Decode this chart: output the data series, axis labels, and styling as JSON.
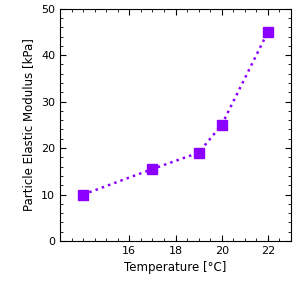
{
  "x": [
    14,
    17,
    19,
    20,
    22
  ],
  "y": [
    10,
    15.5,
    19,
    25,
    45
  ],
  "color": "#8B00FF",
  "marker": "s",
  "marker_size": 7,
  "linestyle": "dotted",
  "linewidth": 1.8,
  "xlabel": "Temperature [°C]",
  "ylabel": "Particle Elastic Modulus [kPa]",
  "xlim": [
    13,
    23
  ],
  "ylim": [
    0,
    50
  ],
  "xticks": [
    16,
    18,
    20,
    22
  ],
  "yticks": [
    0,
    10,
    20,
    30,
    40,
    50
  ],
  "xlabel_fontsize": 8.5,
  "ylabel_fontsize": 8.5,
  "tick_fontsize": 8
}
